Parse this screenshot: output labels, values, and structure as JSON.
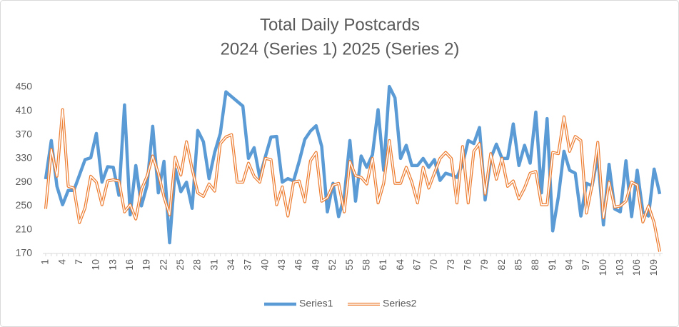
{
  "chart_data": {
    "type": "line",
    "title": "Total Daily Postcards",
    "subtitle": "2024 (Series 1) 2025 (Series 2)",
    "categories": [
      1,
      null,
      null,
      4,
      null,
      null,
      7,
      null,
      null,
      10,
      null,
      null,
      13,
      null,
      null,
      16,
      null,
      null,
      19,
      null,
      null,
      22,
      null,
      null,
      25,
      null,
      null,
      28,
      null,
      null,
      31,
      null,
      null,
      34,
      null,
      null,
      37,
      null,
      null,
      40,
      null,
      null,
      43,
      null,
      null,
      46,
      null,
      null,
      49,
      null,
      null,
      52,
      null,
      null,
      55,
      null,
      null,
      58,
      null,
      null,
      61,
      null,
      null,
      64,
      null,
      null,
      67,
      null,
      null,
      70,
      null,
      null,
      73,
      null,
      null,
      76,
      null,
      null,
      79,
      null,
      null,
      82,
      null,
      null,
      85,
      null,
      null,
      88,
      null,
      null,
      91,
      null,
      null,
      94,
      null,
      null,
      97,
      null,
      null,
      100,
      null,
      null,
      103,
      null,
      null,
      106,
      null,
      null,
      109,
      null
    ],
    "series": [
      {
        "name": "Series1",
        "color": "#5b9bd5",
        "values": [
          295,
          360,
          283,
          252,
          276,
          276,
          302,
          328,
          331,
          372,
          290,
          316,
          315,
          268,
          420,
          235,
          318,
          250,
          285,
          384,
          272,
          325,
          188,
          312,
          274,
          290,
          246,
          377,
          358,
          296,
          340,
          372,
          442,
          434,
          426,
          418,
          330,
          348,
          298,
          333,
          366,
          367,
          290,
          296,
          292,
          325,
          362,
          376,
          385,
          350,
          240,
          288,
          232,
          265,
          360,
          258,
          334,
          315,
          336,
          412,
          310,
          451,
          432,
          330,
          352,
          318,
          318,
          330,
          315,
          328,
          293,
          305,
          302,
          298,
          320,
          360,
          355,
          382,
          260,
          330,
          354,
          330,
          330,
          388,
          318,
          352,
          322,
          408,
          272,
          397,
          208,
          265,
          342,
          310,
          305,
          233,
          288,
          284,
          335,
          218,
          320,
          245,
          240,
          326,
          232,
          310,
          240,
          233,
          312,
          270
        ]
      },
      {
        "name": "Series2",
        "color": "#ed7d31",
        "values": [
          245,
          345,
          300,
          412,
          283,
          280,
          222,
          247,
          300,
          290,
          252,
          292,
          294,
          292,
          240,
          252,
          228,
          278,
          300,
          334,
          305,
          265,
          235,
          332,
          302,
          358,
          312,
          272,
          266,
          287,
          275,
          355,
          366,
          370,
          290,
          290,
          322,
          300,
          290,
          330,
          328,
          252,
          282,
          233,
          290,
          292,
          257,
          326,
          340,
          258,
          264,
          285,
          288,
          240,
          325,
          301,
          298,
          287,
          330,
          255,
          288,
          360,
          288,
          288,
          315,
          290,
          255,
          315,
          280,
          305,
          330,
          340,
          330,
          255,
          350,
          255,
          342,
          355,
          270,
          338,
          295,
          330,
          283,
          292,
          262,
          280,
          305,
          308,
          252,
          252,
          340,
          338,
          400,
          342,
          367,
          360,
          238,
          285,
          357,
          230,
          290,
          248,
          250,
          258,
          290,
          285,
          223,
          250,
          222,
          173
        ]
      }
    ],
    "ylim": [
      170,
      450
    ],
    "yticks": [
      170,
      210,
      250,
      290,
      330,
      370,
      410,
      450
    ],
    "grid": false,
    "legend": "bottom"
  }
}
